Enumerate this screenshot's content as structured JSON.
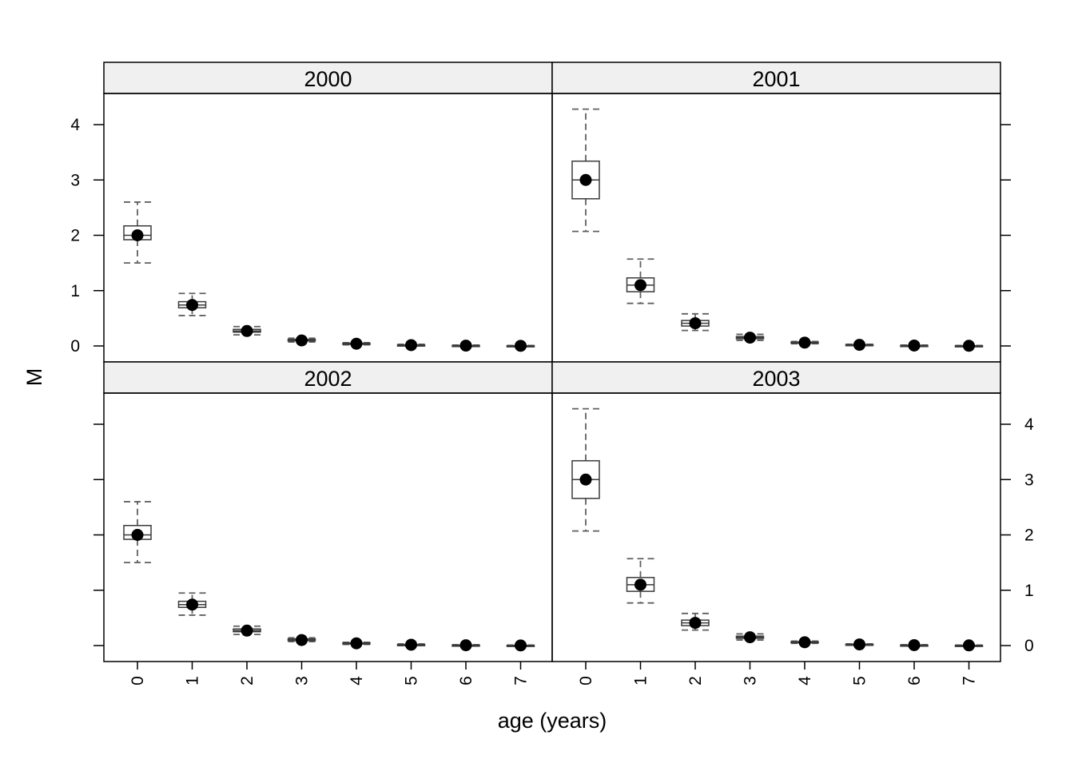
{
  "chart_data": {
    "type": "boxplot",
    "ylabel": "M",
    "xlabel": "age (years)",
    "categories": [
      "0",
      "1",
      "2",
      "3",
      "4",
      "5",
      "6",
      "7"
    ],
    "ylim": [
      -0.3,
      4.6
    ],
    "yticks": [
      0,
      1,
      2,
      3,
      4
    ],
    "panels": [
      {
        "title": "2000",
        "boxes": [
          {
            "age": "0",
            "whisker_low": 1.5,
            "q1": 1.92,
            "median": 2.0,
            "q3": 2.17,
            "whisker_high": 2.6,
            "mean": 2.0
          },
          {
            "age": "1",
            "whisker_low": 0.55,
            "q1": 0.69,
            "median": 0.74,
            "q3": 0.8,
            "whisker_high": 0.95,
            "mean": 0.74
          },
          {
            "age": "2",
            "whisker_low": 0.2,
            "q1": 0.25,
            "median": 0.27,
            "q3": 0.3,
            "whisker_high": 0.35,
            "mean": 0.27
          },
          {
            "age": "3",
            "whisker_low": 0.07,
            "q1": 0.09,
            "median": 0.1,
            "q3": 0.12,
            "whisker_high": 0.14,
            "mean": 0.1
          },
          {
            "age": "4",
            "whisker_low": 0.02,
            "q1": 0.03,
            "median": 0.04,
            "q3": 0.05,
            "whisker_high": 0.06,
            "mean": 0.04
          },
          {
            "age": "5",
            "whisker_low": 0.0,
            "q1": 0.01,
            "median": 0.015,
            "q3": 0.02,
            "whisker_high": 0.03,
            "mean": 0.015
          },
          {
            "age": "6",
            "whisker_low": 0.0,
            "q1": 0.0,
            "median": 0.006,
            "q3": 0.01,
            "whisker_high": 0.015,
            "mean": 0.006
          },
          {
            "age": "7",
            "whisker_low": 0.0,
            "q1": 0.0,
            "median": 0.002,
            "q3": 0.005,
            "whisker_high": 0.008,
            "mean": 0.002
          }
        ]
      },
      {
        "title": "2001",
        "boxes": [
          {
            "age": "0",
            "whisker_low": 2.07,
            "q1": 2.66,
            "median": 3.0,
            "q3": 3.34,
            "whisker_high": 4.28,
            "mean": 3.0
          },
          {
            "age": "1",
            "whisker_low": 0.77,
            "q1": 0.98,
            "median": 1.1,
            "q3": 1.23,
            "whisker_high": 1.57,
            "mean": 1.1
          },
          {
            "age": "2",
            "whisker_low": 0.28,
            "q1": 0.36,
            "median": 0.41,
            "q3": 0.46,
            "whisker_high": 0.58,
            "mean": 0.41
          },
          {
            "age": "3",
            "whisker_low": 0.1,
            "q1": 0.13,
            "median": 0.15,
            "q3": 0.17,
            "whisker_high": 0.21,
            "mean": 0.15
          },
          {
            "age": "4",
            "whisker_low": 0.04,
            "q1": 0.05,
            "median": 0.06,
            "q3": 0.07,
            "whisker_high": 0.08,
            "mean": 0.06
          },
          {
            "age": "5",
            "whisker_low": 0.01,
            "q1": 0.015,
            "median": 0.02,
            "q3": 0.025,
            "whisker_high": 0.03,
            "mean": 0.02
          },
          {
            "age": "6",
            "whisker_low": 0.0,
            "q1": 0.005,
            "median": 0.008,
            "q3": 0.01,
            "whisker_high": 0.015,
            "mean": 0.008
          },
          {
            "age": "7",
            "whisker_low": 0.0,
            "q1": 0.0,
            "median": 0.003,
            "q3": 0.005,
            "whisker_high": 0.008,
            "mean": 0.003
          }
        ]
      },
      {
        "title": "2002",
        "boxes": [
          {
            "age": "0",
            "whisker_low": 1.5,
            "q1": 1.92,
            "median": 2.0,
            "q3": 2.17,
            "whisker_high": 2.6,
            "mean": 2.0
          },
          {
            "age": "1",
            "whisker_low": 0.55,
            "q1": 0.69,
            "median": 0.74,
            "q3": 0.8,
            "whisker_high": 0.95,
            "mean": 0.74
          },
          {
            "age": "2",
            "whisker_low": 0.2,
            "q1": 0.25,
            "median": 0.27,
            "q3": 0.3,
            "whisker_high": 0.35,
            "mean": 0.27
          },
          {
            "age": "3",
            "whisker_low": 0.07,
            "q1": 0.09,
            "median": 0.1,
            "q3": 0.12,
            "whisker_high": 0.14,
            "mean": 0.1
          },
          {
            "age": "4",
            "whisker_low": 0.02,
            "q1": 0.03,
            "median": 0.04,
            "q3": 0.05,
            "whisker_high": 0.06,
            "mean": 0.04
          },
          {
            "age": "5",
            "whisker_low": 0.0,
            "q1": 0.01,
            "median": 0.015,
            "q3": 0.02,
            "whisker_high": 0.03,
            "mean": 0.015
          },
          {
            "age": "6",
            "whisker_low": 0.0,
            "q1": 0.0,
            "median": 0.006,
            "q3": 0.01,
            "whisker_high": 0.015,
            "mean": 0.006
          },
          {
            "age": "7",
            "whisker_low": 0.0,
            "q1": 0.0,
            "median": 0.002,
            "q3": 0.005,
            "whisker_high": 0.008,
            "mean": 0.002
          }
        ]
      },
      {
        "title": "2003",
        "boxes": [
          {
            "age": "0",
            "whisker_low": 2.07,
            "q1": 2.66,
            "median": 3.0,
            "q3": 3.34,
            "whisker_high": 4.28,
            "mean": 3.0
          },
          {
            "age": "1",
            "whisker_low": 0.77,
            "q1": 0.98,
            "median": 1.1,
            "q3": 1.23,
            "whisker_high": 1.57,
            "mean": 1.1
          },
          {
            "age": "2",
            "whisker_low": 0.28,
            "q1": 0.36,
            "median": 0.41,
            "q3": 0.46,
            "whisker_high": 0.58,
            "mean": 0.41
          },
          {
            "age": "3",
            "whisker_low": 0.1,
            "q1": 0.13,
            "median": 0.15,
            "q3": 0.17,
            "whisker_high": 0.21,
            "mean": 0.15
          },
          {
            "age": "4",
            "whisker_low": 0.04,
            "q1": 0.05,
            "median": 0.06,
            "q3": 0.07,
            "whisker_high": 0.08,
            "mean": 0.06
          },
          {
            "age": "5",
            "whisker_low": 0.01,
            "q1": 0.015,
            "median": 0.02,
            "q3": 0.025,
            "whisker_high": 0.03,
            "mean": 0.02
          },
          {
            "age": "6",
            "whisker_low": 0.0,
            "q1": 0.005,
            "median": 0.008,
            "q3": 0.01,
            "whisker_high": 0.015,
            "mean": 0.008
          },
          {
            "age": "7",
            "whisker_low": 0.0,
            "q1": 0.0,
            "median": 0.003,
            "q3": 0.005,
            "whisker_high": 0.008,
            "mean": 0.003
          }
        ]
      }
    ],
    "colors": {
      "strip_fill": "#f0f0f0",
      "box_stroke": "#3a3a3a",
      "whisker_stroke": "#606060",
      "point": "#000000",
      "frame": "#000000"
    }
  }
}
